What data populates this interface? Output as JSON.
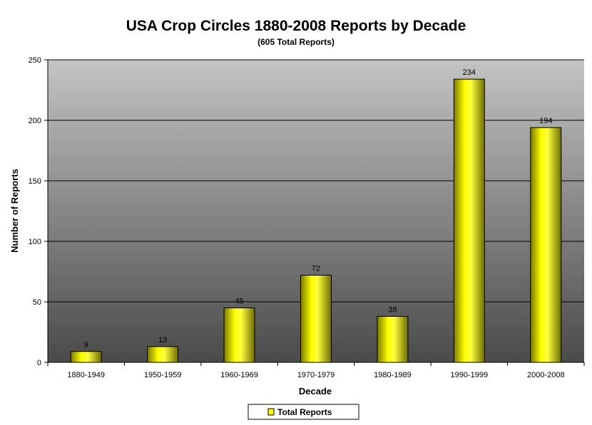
{
  "chart_data": {
    "type": "bar",
    "title": "USA Crop Circles 1880-2008 Reports by Decade",
    "subtitle": "(605 Total Reports)",
    "xlabel": "Decade",
    "ylabel": "Number of Reports",
    "categories": [
      "1880-1949",
      "1950-1959",
      "1960-1969",
      "1970-1979",
      "1980-1989",
      "1990-1999",
      "2000-2008"
    ],
    "series": [
      {
        "name": "Total Reports",
        "values": [
          9,
          13,
          45,
          72,
          38,
          234,
          194
        ],
        "color": "#ffff00"
      }
    ],
    "ylim": [
      0,
      250
    ],
    "yticks": [
      "0",
      "50",
      "100",
      "150",
      "200",
      "250"
    ],
    "grid": true,
    "legend_position": "bottom",
    "colors": {
      "plot_bg_top": "#c4c4c4",
      "plot_bg_bottom": "#4a4a4a",
      "bar": "#ffff00"
    }
  }
}
